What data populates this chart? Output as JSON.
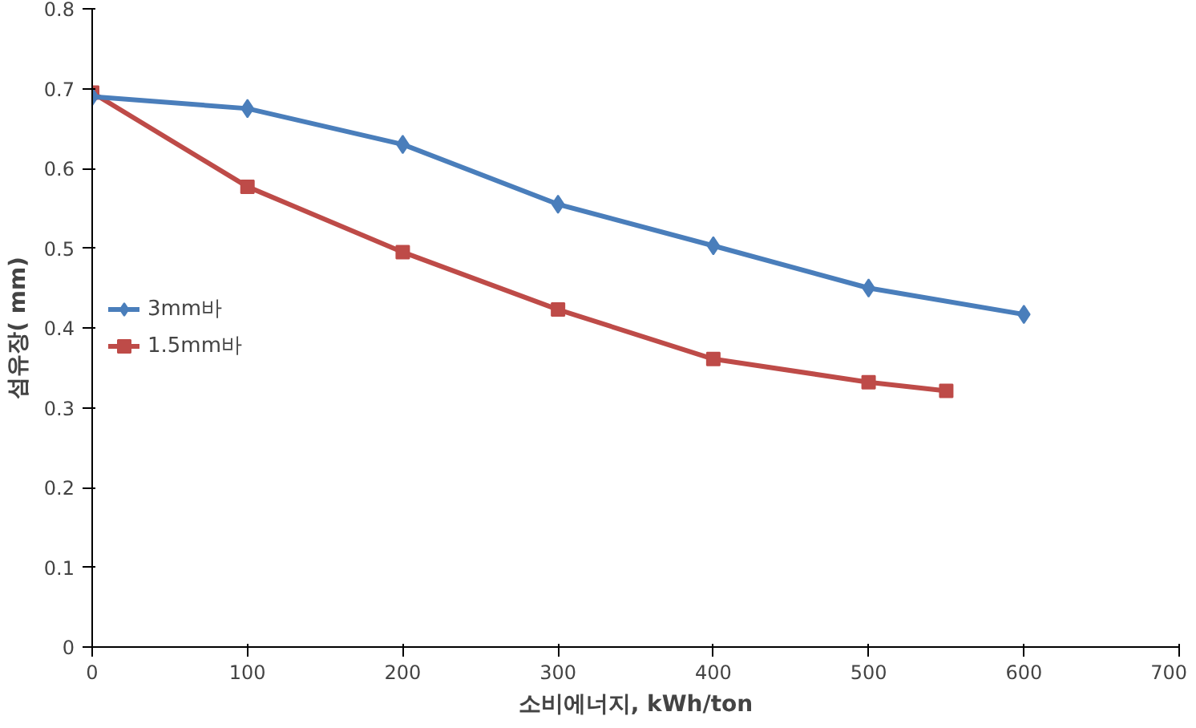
{
  "chart_data": {
    "type": "line",
    "xlabel": "소비에너지, kWh/ton",
    "ylabel": "섬유장( mm)",
    "xlim": [
      0,
      700
    ],
    "xticks": [
      0,
      100,
      200,
      300,
      400,
      500,
      600,
      700
    ],
    "ylim": [
      0,
      0.8
    ],
    "yticks": [
      0,
      0.1,
      0.2,
      0.3,
      0.4,
      0.5,
      0.6,
      0.7,
      0.8
    ],
    "grid": false,
    "legend": "left",
    "line_style": "solid",
    "series": [
      {
        "name": "3mm바",
        "color": "#4a7ebb",
        "marker": "diamond",
        "x": [
          0,
          100,
          200,
          300,
          400,
          500,
          600
        ],
        "values": [
          0.69,
          0.675,
          0.63,
          0.555,
          0.503,
          0.45,
          0.417
        ]
      },
      {
        "name": "1.5mm바",
        "color": "#be4b48",
        "marker": "square",
        "x": [
          0,
          100,
          200,
          300,
          400,
          500,
          550
        ],
        "values": [
          0.695,
          0.577,
          0.495,
          0.423,
          0.361,
          0.332,
          0.321
        ]
      }
    ]
  }
}
